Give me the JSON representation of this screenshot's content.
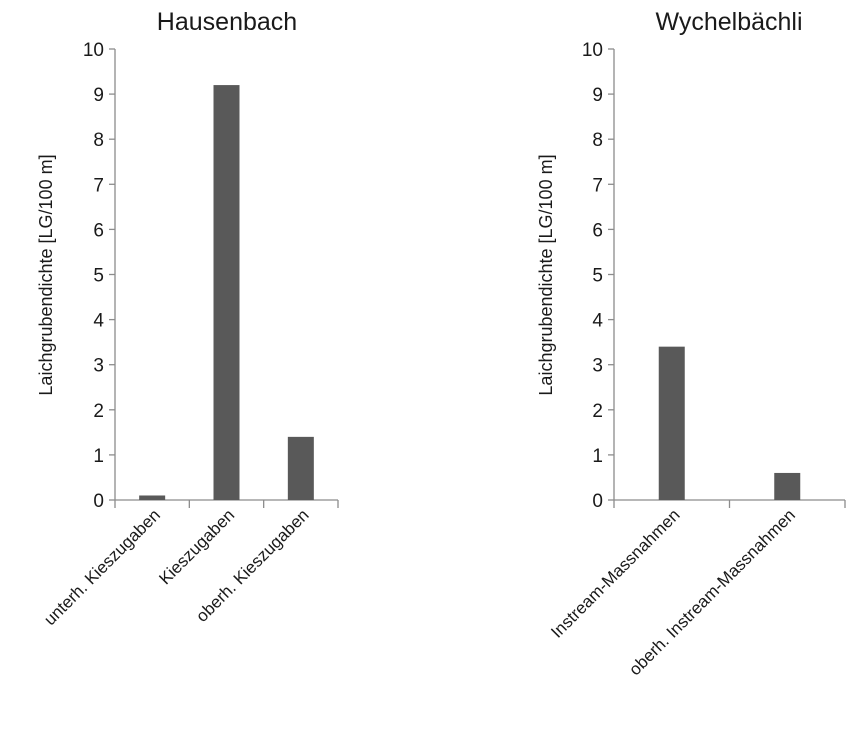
{
  "chart_data": [
    {
      "type": "bar",
      "title": "Hausenbach",
      "xlabel": "",
      "ylabel": "Laichgrubendichte [LG/100 m]",
      "ylim": [
        0,
        10
      ],
      "yticks": [
        "0",
        "1",
        "2",
        "3",
        "4",
        "5",
        "6",
        "7",
        "8",
        "9",
        "10"
      ],
      "categories": [
        "unterh. Kieszugaben",
        "Kieszugaben",
        "oberh. Kieszugaben"
      ],
      "values": [
        0.1,
        9.2,
        1.4
      ],
      "grid": false,
      "bar_color": "#595959"
    },
    {
      "type": "bar",
      "title": "Wychelbächli",
      "xlabel": "",
      "ylabel": "Laichgrubendichte [LG/100 m]",
      "ylim": [
        0,
        10
      ],
      "yticks": [
        "0",
        "1",
        "2",
        "3",
        "4",
        "5",
        "6",
        "7",
        "8",
        "9",
        "10"
      ],
      "categories": [
        "Instream-Massnahmen",
        "oberh. Instream-Massnahmen"
      ],
      "values": [
        3.4,
        0.6
      ],
      "grid": false,
      "bar_color": "#595959"
    }
  ]
}
